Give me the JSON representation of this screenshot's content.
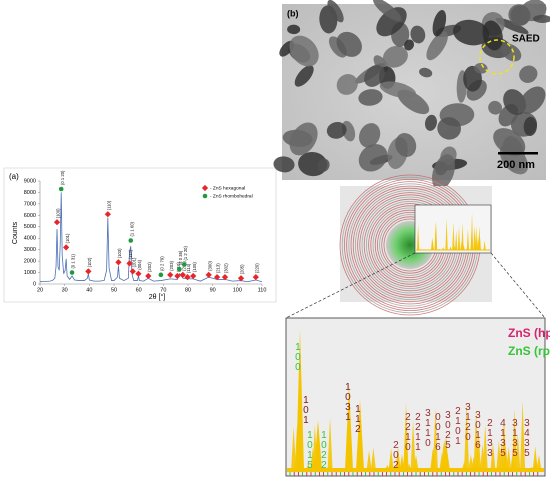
{
  "chart_data": {
    "type": "line",
    "title": "(a)",
    "ylabel": "Counts",
    "xlabel": "2θ [°]",
    "xlim": [
      20,
      110
    ],
    "xticks": [
      20,
      30,
      40,
      50,
      60,
      70,
      80,
      90,
      100,
      110
    ],
    "ylim": [
      0,
      9000
    ],
    "yticks": [
      0,
      1000,
      2000,
      3000,
      4000,
      5000,
      6000,
      7000,
      8000,
      9000
    ],
    "legend": "upper right",
    "pattern": {
      "color": "#4a6fb5",
      "x": [
        20,
        22,
        24,
        25,
        26,
        26.5,
        26.9,
        27.3,
        27.8,
        28.2,
        28.6,
        29,
        29.6,
        30.2,
        30.6,
        31,
        32,
        33,
        34,
        36,
        38,
        39.2,
        39.6,
        40,
        42,
        44,
        46,
        47,
        47.5,
        48,
        49,
        50,
        51.4,
        51.8,
        52.2,
        54,
        55.8,
        56.3,
        56.8,
        57.2,
        57.6,
        58,
        59.5,
        59.9,
        60.3,
        62,
        63.9,
        66,
        69,
        72.8,
        75.7,
        76.5,
        78,
        79.8,
        82.1,
        85,
        88.4,
        91.8,
        95,
        98,
        101.5,
        104,
        107.5,
        110
      ],
      "values": [
        200,
        220,
        250,
        300,
        500,
        1500,
        4800,
        1500,
        1200,
        3500,
        8000,
        2500,
        900,
        1200,
        2200,
        700,
        400,
        700,
        350,
        300,
        300,
        500,
        900,
        350,
        250,
        250,
        300,
        1200,
        5800,
        1400,
        300,
        300,
        600,
        1600,
        500,
        300,
        500,
        2800,
        3300,
        1000,
        600,
        300,
        300,
        700,
        300,
        250,
        500,
        250,
        300,
        450,
        400,
        900,
        500,
        450,
        450,
        250,
        600,
        400,
        400,
        250,
        300,
        200,
        350,
        200
      ]
    },
    "series": [
      {
        "name": "- ZnS hexagonal",
        "color": "#e8262a",
        "marker": "diamond",
        "x": [
          26.9,
          30.6,
          39.6,
          47.5,
          51.8,
          56.3,
          57.6,
          59.9,
          63.9,
          72.8,
          75.7,
          77.9,
          79.8,
          82.1,
          88.4,
          91.8,
          95.0,
          101.5,
          107.5
        ],
        "values": [
          5400,
          3200,
          1100,
          6100,
          1900,
          1800,
          1100,
          900,
          700,
          800,
          700,
          800,
          600,
          700,
          800,
          600,
          600,
          500,
          600
        ],
        "labels": [
          "(100)",
          "(101)",
          "(102)",
          "(110)",
          "(103)",
          "(112)",
          "(201)",
          "(004)",
          "(202)",
          "(203)",
          "(210)",
          "(211)",
          "(114)",
          "(105)",
          "(300)",
          "(213)",
          "(302)",
          "(205)",
          "(220)"
        ]
      },
      {
        "name": "- ZnS rhombohedral",
        "color": "#1e9a3c",
        "marker": "circle",
        "x": [
          28.6,
          33.0,
          56.8,
          69.0,
          76.5,
          78.5
        ],
        "values": [
          8300,
          1000,
          3800,
          800,
          1300,
          1700
        ],
        "labels": [
          "(0 1 20)",
          "(0 1 31)",
          "(1 1 60)",
          "(0 2 79)",
          "(2 0 35)",
          "(1 2 20)"
        ]
      }
    ]
  },
  "panel_b": {
    "label": "(b)",
    "saed": "SAED",
    "scale": "200 nm",
    "legend": [
      {
        "text": "ZnS (hp)",
        "color": "#d6226e"
      },
      {
        "text": "ZnS (rp)",
        "color": "#36c43a"
      }
    ],
    "indices": [
      {
        "text": "100",
        "color": "#36c43a"
      },
      {
        "text": "101",
        "color": "#7a1a1a"
      },
      {
        "text": "1031",
        "color": "#7a1a1a"
      },
      {
        "text": "112",
        "color": "#7a1a1a"
      },
      {
        "text": "1015",
        "color": "#36c43a"
      },
      {
        "text": "1022",
        "color": "#36c43a"
      },
      {
        "text": "202",
        "color": "#9b2b2b"
      },
      {
        "text": "2210",
        "color": "#9b2b2b"
      },
      {
        "text": "2211",
        "color": "#9b2b2b"
      },
      {
        "text": "3110",
        "color": "#9b2b2b"
      },
      {
        "text": "0016",
        "color": "#9b2b2b"
      },
      {
        "text": "3025",
        "color": "#9b2b2b"
      },
      {
        "text": "2101",
        "color": "#9b2b2b"
      },
      {
        "text": "3120",
        "color": "#9b2b2b"
      },
      {
        "text": "3016",
        "color": "#9b2b2b"
      },
      {
        "text": "2133",
        "color": "#9b2b2b"
      },
      {
        "text": "4135",
        "color": "#9b2b2b"
      },
      {
        "text": "3135",
        "color": "#9b2b2b"
      },
      {
        "text": "3435",
        "color": "#9b2b2b"
      }
    ]
  }
}
